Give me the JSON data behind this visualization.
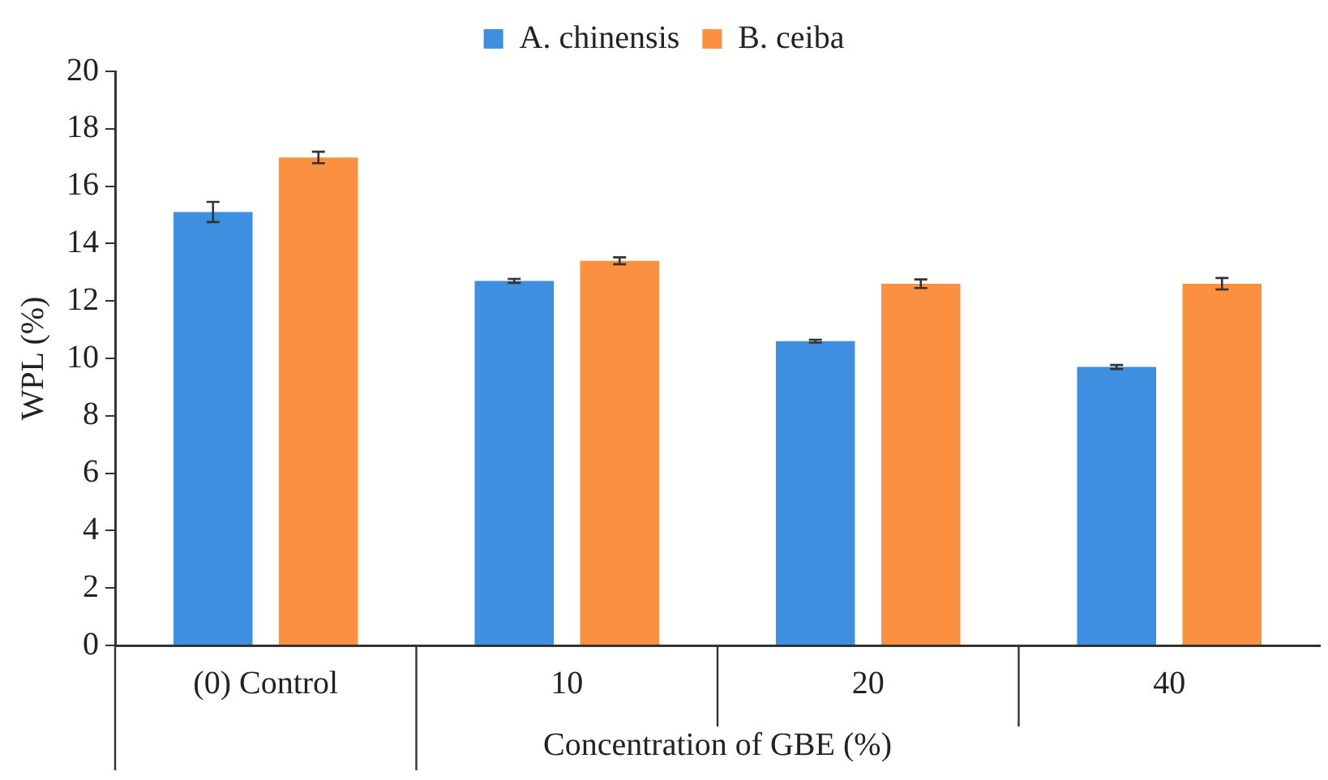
{
  "chart_data": {
    "type": "bar",
    "xlabel": "Concentration of GBE (%)",
    "ylabel": "WPL (%)",
    "categories": [
      "(0) Control",
      "10",
      "20",
      "40"
    ],
    "series": [
      {
        "name": "A. chinensis",
        "color": "#3e8fe0",
        "values": [
          15.1,
          12.7,
          10.6,
          9.7
        ],
        "errors": [
          0.35,
          0.07,
          0.05,
          0.07
        ]
      },
      {
        "name": "B. ceiba",
        "color": "#fb9140",
        "values": [
          17.0,
          13.4,
          12.6,
          12.6
        ],
        "errors": [
          0.2,
          0.12,
          0.15,
          0.2
        ]
      }
    ],
    "ylim": [
      0,
      20
    ],
    "yticks": [
      0,
      2,
      4,
      6,
      8,
      10,
      12,
      14,
      16,
      18,
      20
    ],
    "grid": false,
    "legend": "top"
  }
}
